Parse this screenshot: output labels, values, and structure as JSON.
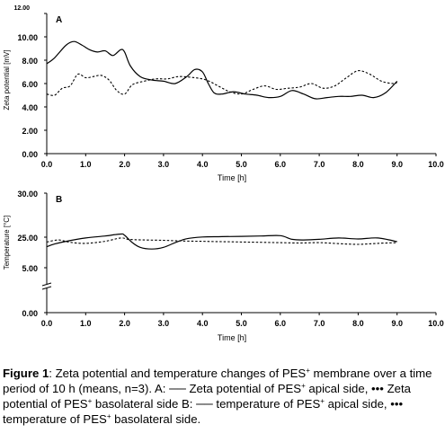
{
  "chart_data": [
    {
      "type": "line",
      "panel_label": "A",
      "xlabel": "Time [h]",
      "ylabel": "Zeta potential [mV]",
      "xlim": [
        0,
        10
      ],
      "ylim": [
        0,
        12
      ],
      "x_ticks": [
        "0.0",
        "1.0",
        "2.0",
        "3.0",
        "4.0",
        "5.0",
        "6.0",
        "7.0",
        "8.0",
        "9.0",
        "10.0"
      ],
      "y_ticks": [
        "0.00",
        "2.00",
        "4.00",
        "6.00",
        "8.00",
        "10.00",
        "12.00"
      ],
      "grid": false,
      "series": [
        {
          "style": "solid",
          "x": [
            0.0,
            0.2,
            0.5,
            0.7,
            0.9,
            1.1,
            1.3,
            1.5,
            1.7,
            1.9,
            2.0,
            2.15,
            2.4,
            2.7,
            3.0,
            3.3,
            3.6,
            3.8,
            4.0,
            4.15,
            4.3,
            4.5,
            4.8,
            5.1,
            5.4,
            5.7,
            6.0,
            6.3,
            6.6,
            6.9,
            7.2,
            7.5,
            7.8,
            8.1,
            8.4,
            8.7,
            9.0
          ],
          "y": [
            7.7,
            8.2,
            9.3,
            9.6,
            9.3,
            8.9,
            8.7,
            8.8,
            8.4,
            8.9,
            8.7,
            7.5,
            6.6,
            6.3,
            6.2,
            6.0,
            6.6,
            7.2,
            7.0,
            6.0,
            5.2,
            5.1,
            5.3,
            5.1,
            5.0,
            4.8,
            4.9,
            5.4,
            5.1,
            4.7,
            4.8,
            4.9,
            4.9,
            5.0,
            4.8,
            5.2,
            6.2
          ]
        },
        {
          "style": "dashed",
          "x": [
            0.0,
            0.2,
            0.4,
            0.6,
            0.8,
            1.0,
            1.2,
            1.4,
            1.6,
            1.8,
            2.0,
            2.2,
            2.5,
            2.8,
            3.1,
            3.4,
            3.8,
            4.1,
            4.4,
            4.7,
            5.0,
            5.3,
            5.6,
            5.9,
            6.2,
            6.5,
            6.8,
            7.1,
            7.4,
            7.7,
            8.0,
            8.3,
            8.6,
            8.9,
            9.0
          ],
          "y": [
            5.1,
            5.0,
            5.6,
            5.8,
            6.8,
            6.5,
            6.6,
            6.7,
            6.3,
            5.4,
            5.1,
            5.9,
            6.2,
            6.4,
            6.4,
            6.6,
            6.5,
            6.3,
            5.8,
            5.3,
            5.1,
            5.5,
            5.8,
            5.5,
            5.6,
            5.7,
            6.0,
            5.6,
            5.8,
            6.5,
            7.1,
            6.8,
            6.2,
            6.0,
            6.1
          ]
        }
      ]
    },
    {
      "type": "line",
      "panel_label": "B",
      "xlabel": "Time [h]",
      "ylabel": "Temperature [°C]",
      "xlim": [
        0,
        10
      ],
      "x_ticks": [
        "0.0",
        "1.0",
        "2.0",
        "3.0",
        "4.0",
        "5.0",
        "6.0",
        "7.0",
        "8.0",
        "9.0",
        "10.0"
      ],
      "y_ticks": [
        "0.00",
        "5.00",
        "25.00",
        "30.00"
      ],
      "axis_break": true,
      "grid": false,
      "series": [
        {
          "style": "solid",
          "x": [
            0.0,
            0.2,
            0.5,
            1.0,
            1.5,
            1.9,
            2.0,
            2.2,
            2.4,
            2.7,
            3.0,
            3.3,
            3.6,
            4.0,
            4.5,
            5.0,
            5.5,
            6.0,
            6.3,
            6.6,
            7.0,
            7.5,
            8.0,
            8.5,
            9.0
          ],
          "y": [
            22.0,
            22.8,
            23.6,
            24.6,
            25.2,
            25.8,
            25.4,
            23.2,
            21.8,
            21.3,
            21.8,
            23.2,
            24.4,
            24.9,
            25.0,
            25.1,
            25.2,
            25.3,
            24.2,
            24.0,
            24.2,
            24.6,
            24.3,
            24.6,
            23.5
          ]
        },
        {
          "style": "dashed",
          "x": [
            0.0,
            0.3,
            0.6,
            1.0,
            1.5,
            1.9,
            2.1,
            2.5,
            3.0,
            3.5,
            4.0,
            4.5,
            5.0,
            5.5,
            6.0,
            6.5,
            7.0,
            7.5,
            8.0,
            8.5,
            9.0
          ],
          "y": [
            23.4,
            24.0,
            23.3,
            23.0,
            23.6,
            24.6,
            24.2,
            24.0,
            23.9,
            23.7,
            23.6,
            23.5,
            23.4,
            23.3,
            23.2,
            23.1,
            23.2,
            22.9,
            22.7,
            23.0,
            23.2
          ]
        }
      ]
    }
  ],
  "caption": {
    "figure_label": "Figure 1",
    "text": ": Zeta potential and temperature changes of PES⁺ membrane over a time period of 10 h (means, n=3). A: ── Zeta potential of PES⁺ apical side, ••• Zeta potential of PES⁺ basolateral side B: ── temperature of PES⁺ apical side, ••• temperature of PES⁺ basolateral side."
  }
}
